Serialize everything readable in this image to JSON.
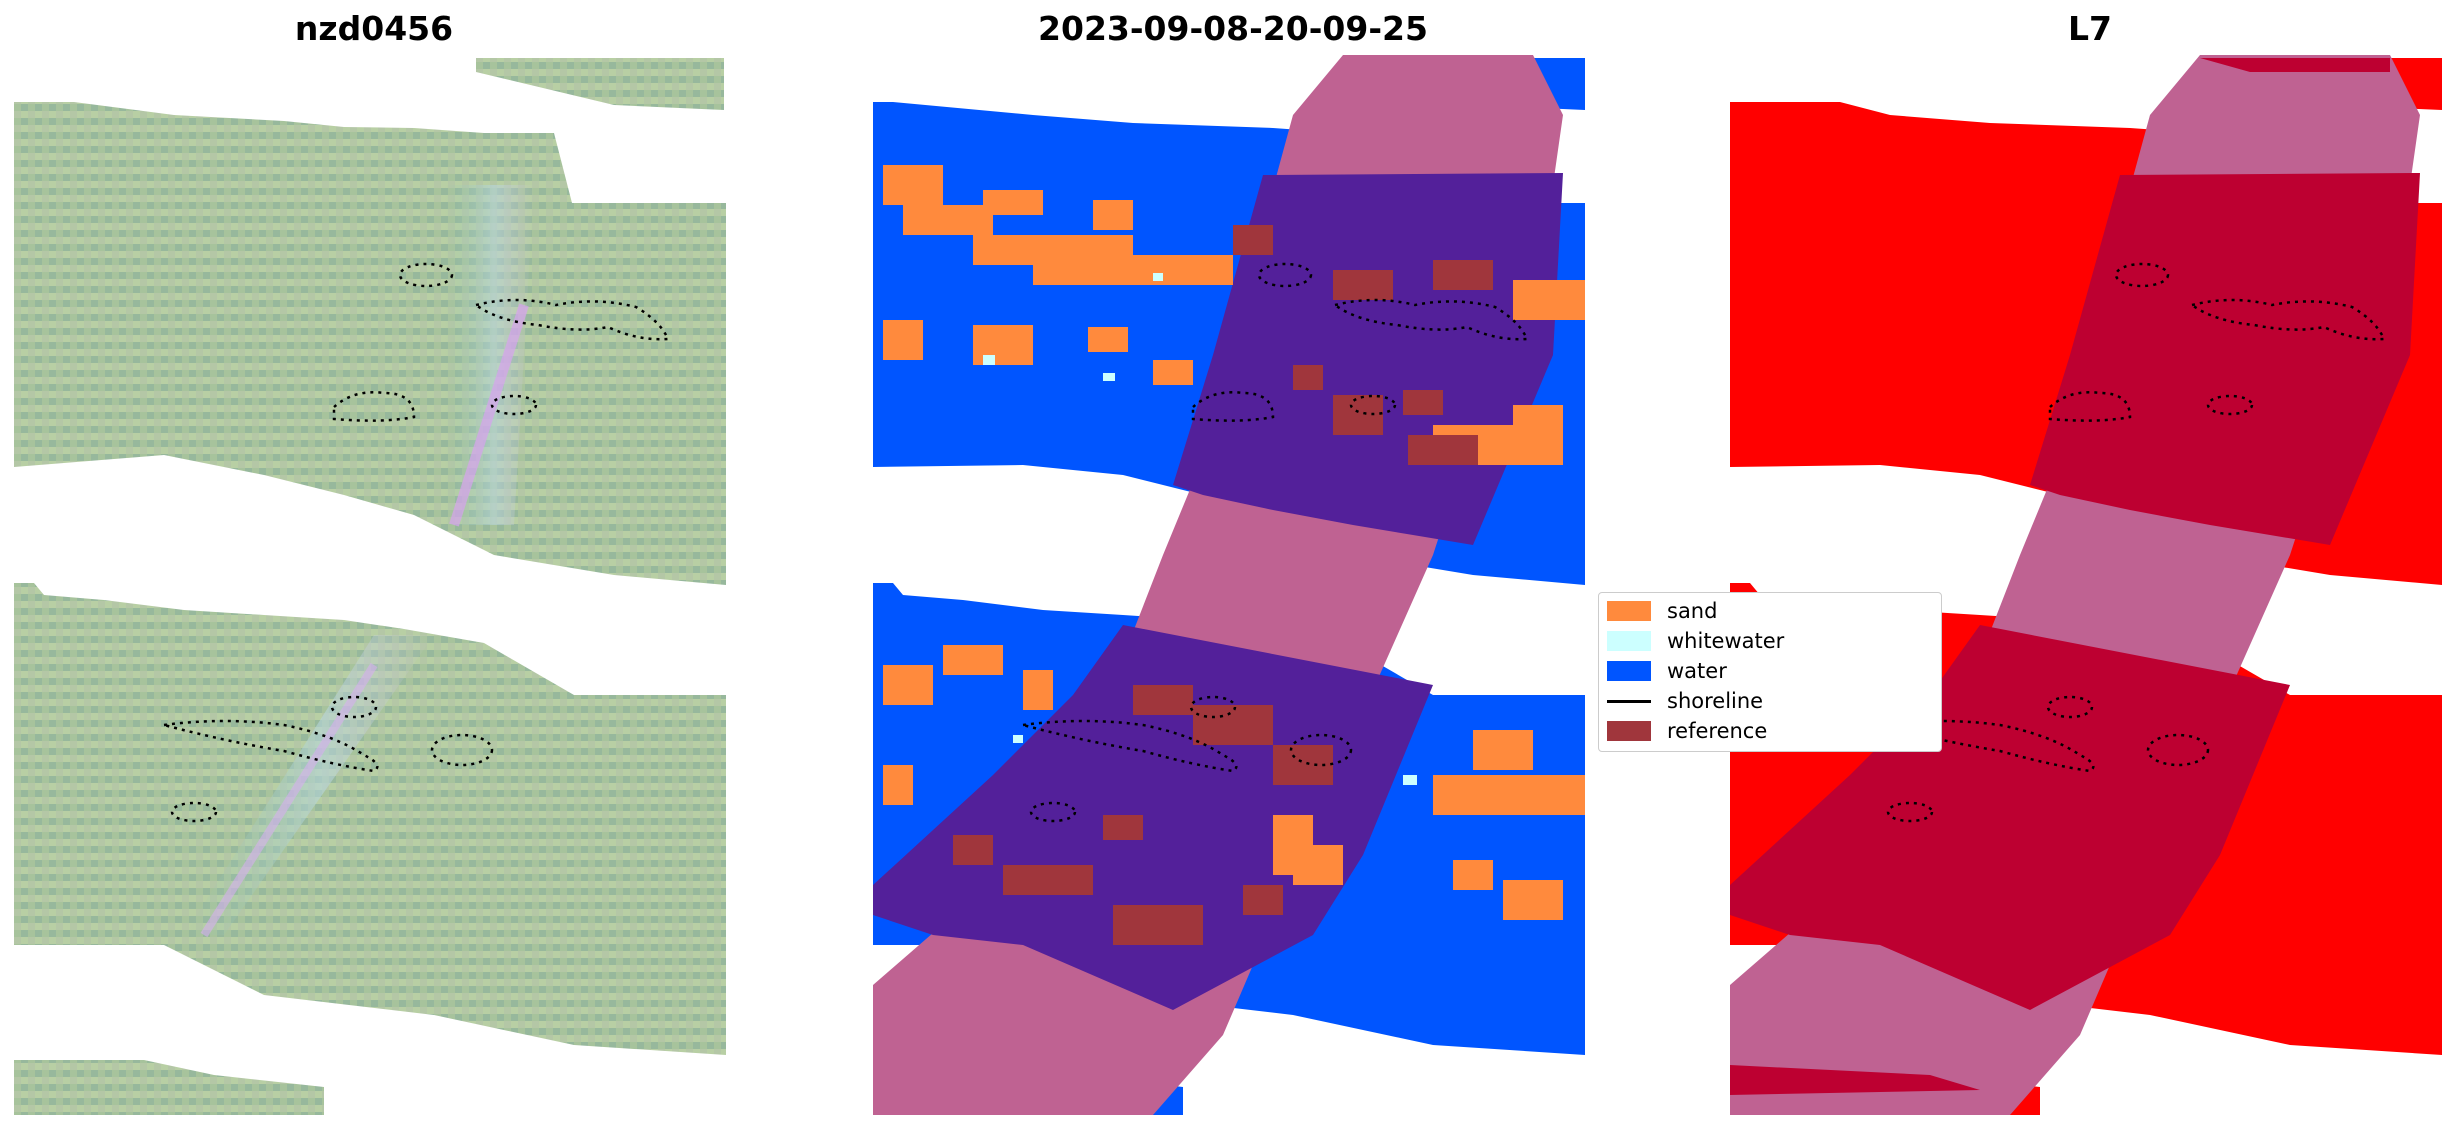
{
  "panels": [
    {
      "title": "nzd0456"
    },
    {
      "title": "2023-09-08-20-09-25"
    },
    {
      "title": "L7"
    }
  ],
  "legend": {
    "items": [
      {
        "label": "sand",
        "type": "patch",
        "color": "#ff8a3d"
      },
      {
        "label": "whitewater",
        "type": "patch",
        "color": "#ccffff"
      },
      {
        "label": "water",
        "type": "patch",
        "color": "#0055ff"
      },
      {
        "label": "shoreline",
        "type": "line",
        "color": "#000000"
      },
      {
        "label": "reference",
        "type": "patch",
        "color": "#a0363c"
      }
    ]
  },
  "colors": {
    "water": "#0055ff",
    "sand": "#ff8a3d",
    "whitewater": "#ccffff",
    "overlap_pink": "#bf6292",
    "overlap_purple": "#53209a",
    "red": "#ff0000",
    "dark_red": "#bd0031",
    "imagery_green": "#9fbf9a"
  }
}
